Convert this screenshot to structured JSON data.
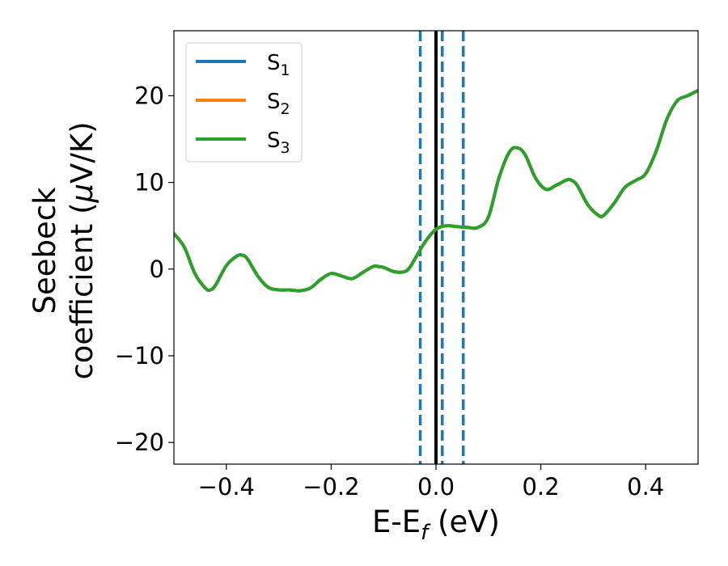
{
  "chart_data": {
    "type": "line",
    "xlabel": {
      "main": "E-E",
      "sub": "f",
      "unit": " (eV)"
    },
    "ylabel": {
      "line1": "Seebeck",
      "line2": "coefficient  (",
      "mu": "μ",
      "line2_end": "V/K)"
    },
    "xlim": [
      -0.5,
      0.5
    ],
    "ylim": [
      -22.5,
      27.5
    ],
    "xticks": [
      -0.4,
      -0.2,
      0.0,
      0.2,
      0.4
    ],
    "xtick_labels": [
      "−0.4",
      "−0.2",
      "0.0",
      "0.2",
      "0.4"
    ],
    "yticks": [
      -20,
      -10,
      0,
      10,
      20
    ],
    "ytick_labels": [
      "−20",
      "−10",
      "0",
      "10",
      "20"
    ],
    "grid": false,
    "legend": {
      "position": "upper-left",
      "entries": [
        {
          "main": "S",
          "sub": "1",
          "color": "#1f77b4"
        },
        {
          "main": "S",
          "sub": "2",
          "color": "#ff7f0e"
        },
        {
          "main": "S",
          "sub": "3",
          "color": "#2ca02c"
        }
      ]
    },
    "reference_lines": {
      "solid_vertical": {
        "x": 0.0,
        "color": "#000000"
      },
      "dashed_vertical": {
        "x": [
          -0.03,
          0.012,
          0.052
        ],
        "color": "#1f77b4"
      }
    },
    "series": [
      {
        "name": "S1",
        "color": "#1f77b4",
        "x": [
          -0.5,
          -0.48,
          -0.46,
          -0.44,
          -0.43,
          -0.42,
          -0.4,
          -0.38,
          -0.37,
          -0.36,
          -0.34,
          -0.32,
          -0.3,
          -0.28,
          -0.26,
          -0.24,
          -0.22,
          -0.2,
          -0.18,
          -0.16,
          -0.14,
          -0.12,
          -0.11,
          -0.1,
          -0.08,
          -0.06,
          -0.05,
          -0.04,
          -0.02,
          0.0,
          0.02,
          0.04,
          0.06,
          0.08,
          0.1,
          0.12,
          0.14,
          0.155,
          0.17,
          0.19,
          0.21,
          0.23,
          0.25,
          0.26,
          0.27,
          0.29,
          0.31,
          0.32,
          0.34,
          0.36,
          0.38,
          0.4,
          0.42,
          0.44,
          0.46,
          0.48,
          0.5
        ],
        "y": [
          4.1,
          2.5,
          -0.5,
          -2.2,
          -2.4,
          -1.8,
          0.4,
          1.5,
          1.6,
          1.2,
          -0.8,
          -2.1,
          -2.4,
          -2.4,
          -2.5,
          -2.2,
          -1.2,
          -0.5,
          -0.8,
          -1.1,
          -0.4,
          0.3,
          0.3,
          0.2,
          -0.3,
          -0.3,
          0.2,
          1.2,
          3.2,
          4.6,
          5.0,
          4.9,
          4.8,
          4.8,
          6.0,
          10.5,
          13.5,
          14.0,
          13.2,
          10.5,
          9.2,
          9.7,
          10.3,
          10.2,
          9.6,
          7.4,
          6.2,
          6.2,
          7.6,
          9.4,
          10.2,
          11.0,
          13.6,
          17.2,
          19.4,
          20.0,
          20.6
        ]
      },
      {
        "name": "S2",
        "color": "#ff7f0e",
        "x": [
          -0.5,
          -0.48,
          -0.46,
          -0.44,
          -0.43,
          -0.42,
          -0.4,
          -0.38,
          -0.37,
          -0.36,
          -0.34,
          -0.32,
          -0.3,
          -0.28,
          -0.26,
          -0.24,
          -0.22,
          -0.2,
          -0.18,
          -0.16,
          -0.14,
          -0.12,
          -0.11,
          -0.1,
          -0.08,
          -0.06,
          -0.05,
          -0.04,
          -0.02,
          0.0,
          0.02,
          0.04,
          0.06,
          0.08,
          0.1,
          0.12,
          0.14,
          0.155,
          0.17,
          0.19,
          0.21,
          0.23,
          0.25,
          0.26,
          0.27,
          0.29,
          0.31,
          0.32,
          0.34,
          0.36,
          0.38,
          0.4,
          0.42,
          0.44,
          0.46,
          0.48,
          0.5
        ],
        "y": [
          4.1,
          2.5,
          -0.5,
          -2.2,
          -2.4,
          -1.8,
          0.4,
          1.5,
          1.6,
          1.2,
          -0.8,
          -2.1,
          -2.4,
          -2.4,
          -2.5,
          -2.2,
          -1.2,
          -0.5,
          -0.8,
          -1.1,
          -0.4,
          0.3,
          0.3,
          0.2,
          -0.3,
          -0.3,
          0.2,
          1.2,
          3.2,
          4.6,
          5.0,
          4.9,
          4.8,
          4.8,
          6.0,
          10.5,
          13.5,
          14.0,
          13.2,
          10.5,
          9.2,
          9.7,
          10.3,
          10.2,
          9.6,
          7.4,
          6.2,
          6.2,
          7.6,
          9.4,
          10.2,
          11.0,
          13.6,
          17.2,
          19.4,
          20.0,
          20.6
        ]
      },
      {
        "name": "S3",
        "color": "#2ca02c",
        "x": [
          -0.5,
          -0.48,
          -0.46,
          -0.44,
          -0.43,
          -0.42,
          -0.4,
          -0.38,
          -0.37,
          -0.36,
          -0.34,
          -0.32,
          -0.3,
          -0.28,
          -0.26,
          -0.24,
          -0.22,
          -0.2,
          -0.18,
          -0.16,
          -0.14,
          -0.12,
          -0.11,
          -0.1,
          -0.08,
          -0.06,
          -0.05,
          -0.04,
          -0.02,
          0.0,
          0.02,
          0.04,
          0.06,
          0.08,
          0.1,
          0.12,
          0.14,
          0.155,
          0.17,
          0.19,
          0.21,
          0.23,
          0.25,
          0.26,
          0.27,
          0.29,
          0.31,
          0.32,
          0.34,
          0.36,
          0.38,
          0.4,
          0.42,
          0.44,
          0.46,
          0.48,
          0.5
        ],
        "y": [
          4.1,
          2.5,
          -0.5,
          -2.2,
          -2.4,
          -1.8,
          0.4,
          1.5,
          1.6,
          1.2,
          -0.8,
          -2.1,
          -2.4,
          -2.4,
          -2.5,
          -2.2,
          -1.2,
          -0.5,
          -0.8,
          -1.1,
          -0.4,
          0.3,
          0.3,
          0.2,
          -0.3,
          -0.3,
          0.2,
          1.2,
          3.2,
          4.6,
          5.0,
          4.9,
          4.8,
          4.8,
          6.0,
          10.5,
          13.5,
          14.0,
          13.2,
          10.5,
          9.2,
          9.7,
          10.3,
          10.2,
          9.6,
          7.4,
          6.2,
          6.2,
          7.6,
          9.4,
          10.2,
          11.0,
          13.6,
          17.2,
          19.4,
          20.0,
          20.6
        ]
      }
    ]
  }
}
